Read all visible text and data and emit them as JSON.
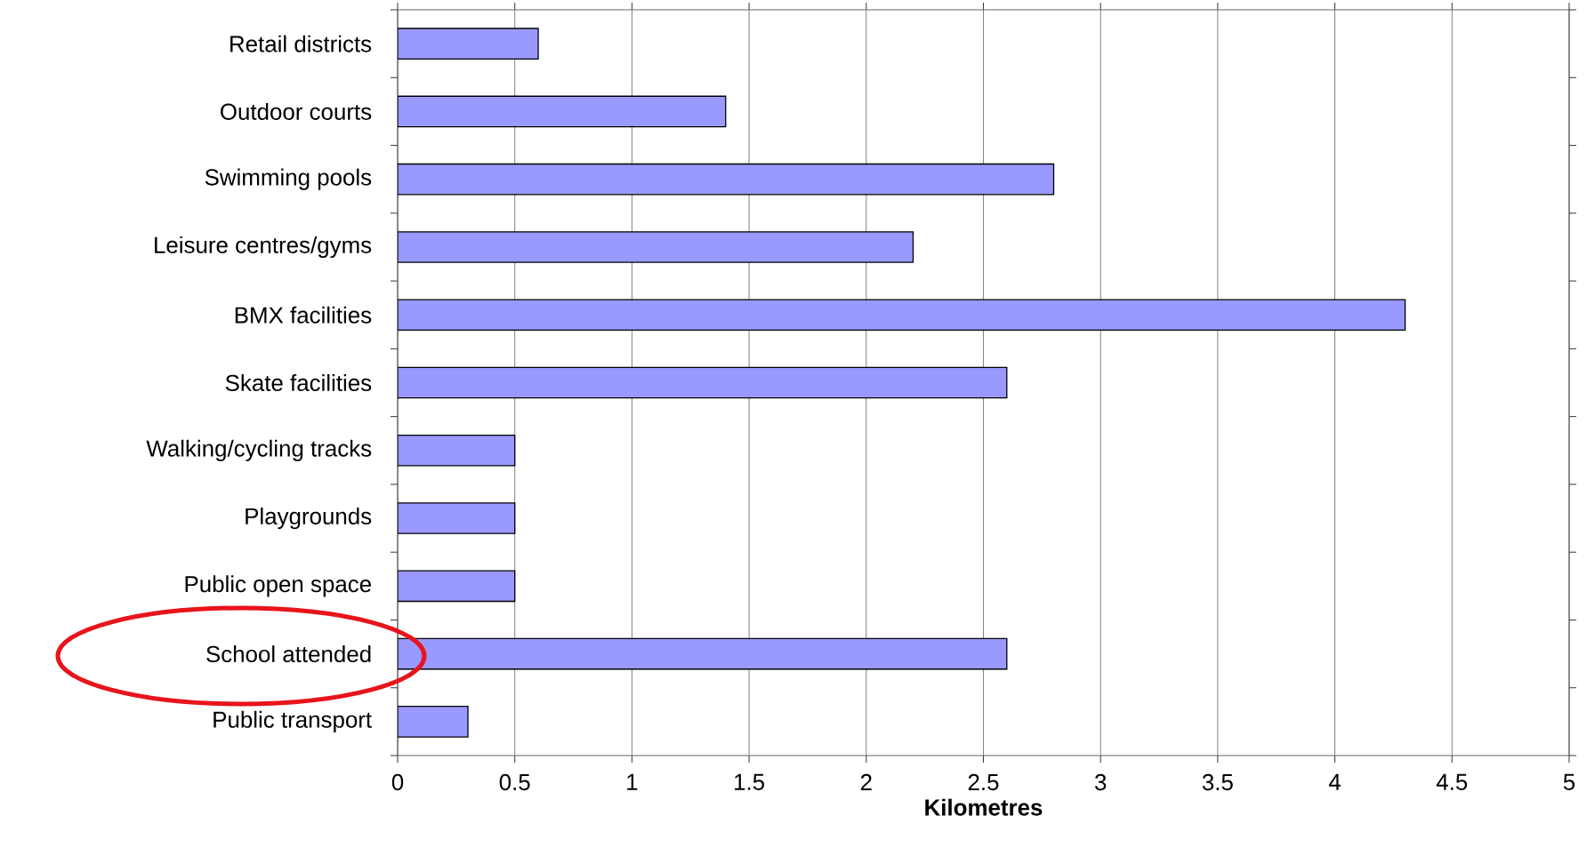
{
  "chart_data": {
    "type": "bar",
    "orientation": "horizontal",
    "xlabel": "Kilometres",
    "categories": [
      "Retail districts",
      "Outdoor courts",
      "Swimming pools",
      "Leisure centres/gyms",
      "BMX facilities",
      "Skate facilities",
      "Walking/cycling tracks",
      "Playgrounds",
      "Public open space",
      "School attended",
      "Public transport"
    ],
    "values": [
      0.6,
      1.4,
      2.8,
      2.2,
      4.3,
      2.6,
      0.5,
      0.5,
      0.5,
      2.6,
      0.3
    ],
    "color": "#9999ff",
    "xlim": [
      0,
      5
    ],
    "xticks": [
      0,
      0.5,
      1,
      1.5,
      2,
      2.5,
      3,
      3.5,
      4,
      4.5,
      5
    ],
    "grid": "x"
  }
}
